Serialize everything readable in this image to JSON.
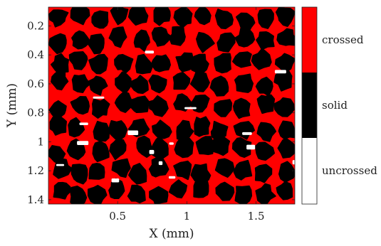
{
  "chart_data": {
    "type": "heatmap",
    "title": "",
    "xlabel": "X (mm)",
    "ylabel": "Y (mm)",
    "xlim": [
      0,
      1.78
    ],
    "ylim": [
      1.43,
      0.07
    ],
    "xticks": [
      {
        "value": 0.5,
        "label": "0.5"
      },
      {
        "value": 1,
        "label": "1"
      },
      {
        "value": 1.5,
        "label": "1.5"
      }
    ],
    "yticks": [
      {
        "value": 0.2,
        "label": "0.2"
      },
      {
        "value": 0.4,
        "label": "0.4"
      },
      {
        "value": 0.6,
        "label": "0.6"
      },
      {
        "value": 0.8,
        "label": "0.8"
      },
      {
        "value": 1,
        "label": "1"
      },
      {
        "value": 1.2,
        "label": "1.2"
      },
      {
        "value": 1.4,
        "label": "1.4"
      }
    ],
    "colorbar": {
      "position": "right",
      "categories": [
        {
          "label": "crossed",
          "color": "#ff0000"
        },
        {
          "label": "solid",
          "color": "#000000"
        },
        {
          "label": "uncrossed",
          "color": "#ffffff"
        }
      ]
    },
    "grid": false
  },
  "colors": {
    "crossed": "#ff0000",
    "solid": "#000000",
    "uncrossed": "#ffffff",
    "axis": "#222222"
  }
}
